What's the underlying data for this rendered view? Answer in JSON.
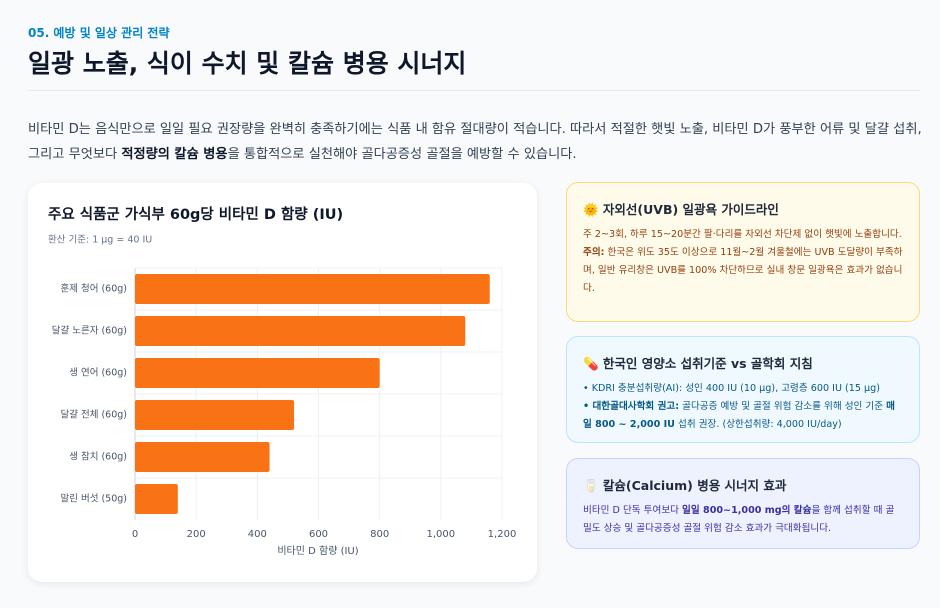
{
  "header": {
    "kicker": "05. 예방 및 일상 관리 전략",
    "title": "일광 노출, 식이 수치 및 칼슘 병용 시너지"
  },
  "intro": {
    "parts": [
      "비타민 D는 음식만으로 일일 필요 권장량을 완벽히 충족하기에는 식품 내 함유 절대량이 적습니다. 따라서 적절한 햇빛 노출, 비타민 D가 풍부한 어류 및 달걀 섭취, 그리고 무엇보다 ",
      {
        "b": "적정량의 칼슘 병용"
      },
      "을 통합적으로 실천해야 골다공증성 골절을 예방할 수 있습니다."
    ]
  },
  "chart_data": {
    "type": "hbar",
    "title": "주요 식품군 가식부 60g당 비타민 D 함량 (IU)",
    "subtitle": "환산 기준: 1 μg = 40 IU",
    "categories": [
      "훈제 청어 (60g)",
      "달걀 노른자 (60g)",
      "생 연어 (60g)",
      "달걀 전체 (60g)",
      "생 참치 (60g)",
      "말린 버섯 (50g)"
    ],
    "values": [
      1160,
      1080,
      800,
      520,
      440,
      140
    ],
    "color": "#f97316",
    "xlim": [
      0,
      1200
    ],
    "xticks": [
      0,
      200,
      400,
      600,
      800,
      {
        "value": 1000,
        "label": "1,000"
      },
      {
        "value": 1200,
        "label": "1,200"
      }
    ],
    "xlabel": "비타민 D 함량 (IU)",
    "grid": true
  },
  "cards": [
    {
      "title": "🌞 자외선(UVB) 일광욕 가이드라인",
      "items": [
        {
          "parts": [
            "주 2~3회, 하루 15~20분간 팔·다리를 자외선 차단제 없이 햇빛에 노출합니다."
          ]
        },
        {
          "parts": [
            {
              "b": "주의:"
            },
            " 한국은 위도 35도 이상으로 11월~2월 겨울철에는 UVB 도달량이 부족하며, 일반 유리창은 UVB를 100% 차단하므로 실내 창문 일광욕은 효과가 없습니다."
          ]
        }
      ]
    },
    {
      "title": "💊 한국인 영양소 섭취기준 vs 골학회 지침",
      "items": [
        {
          "parts": [
            "• KDRI 충분섭취량(AI): 성인 400 IU (10 μg), 고령층 600 IU (15 μg)"
          ]
        },
        {
          "parts": [
            {
              "b": "• 대한골대사학회 권고:"
            },
            " 골다공증 예방 및 골절 위험 감소를 위해 성인 기준 ",
            {
              "b": "매일 800 ~ 2,000 IU"
            },
            " 섭취 권장. (상한섭취량: 4,000 IU/day)"
          ]
        }
      ]
    },
    {
      "title": "🥛 칼슘(Calcium) 병용 시너지 효과",
      "items": [
        {
          "parts": [
            "비타민 D 단독 투여보다 ",
            {
              "b": "일일 800~1,000 mg의 칼슘"
            },
            "을 함께 섭취할 때 골밀도 상승 및 골다공증성 골절 위험 감소 효과가 극대화됩니다."
          ]
        }
      ]
    }
  ]
}
